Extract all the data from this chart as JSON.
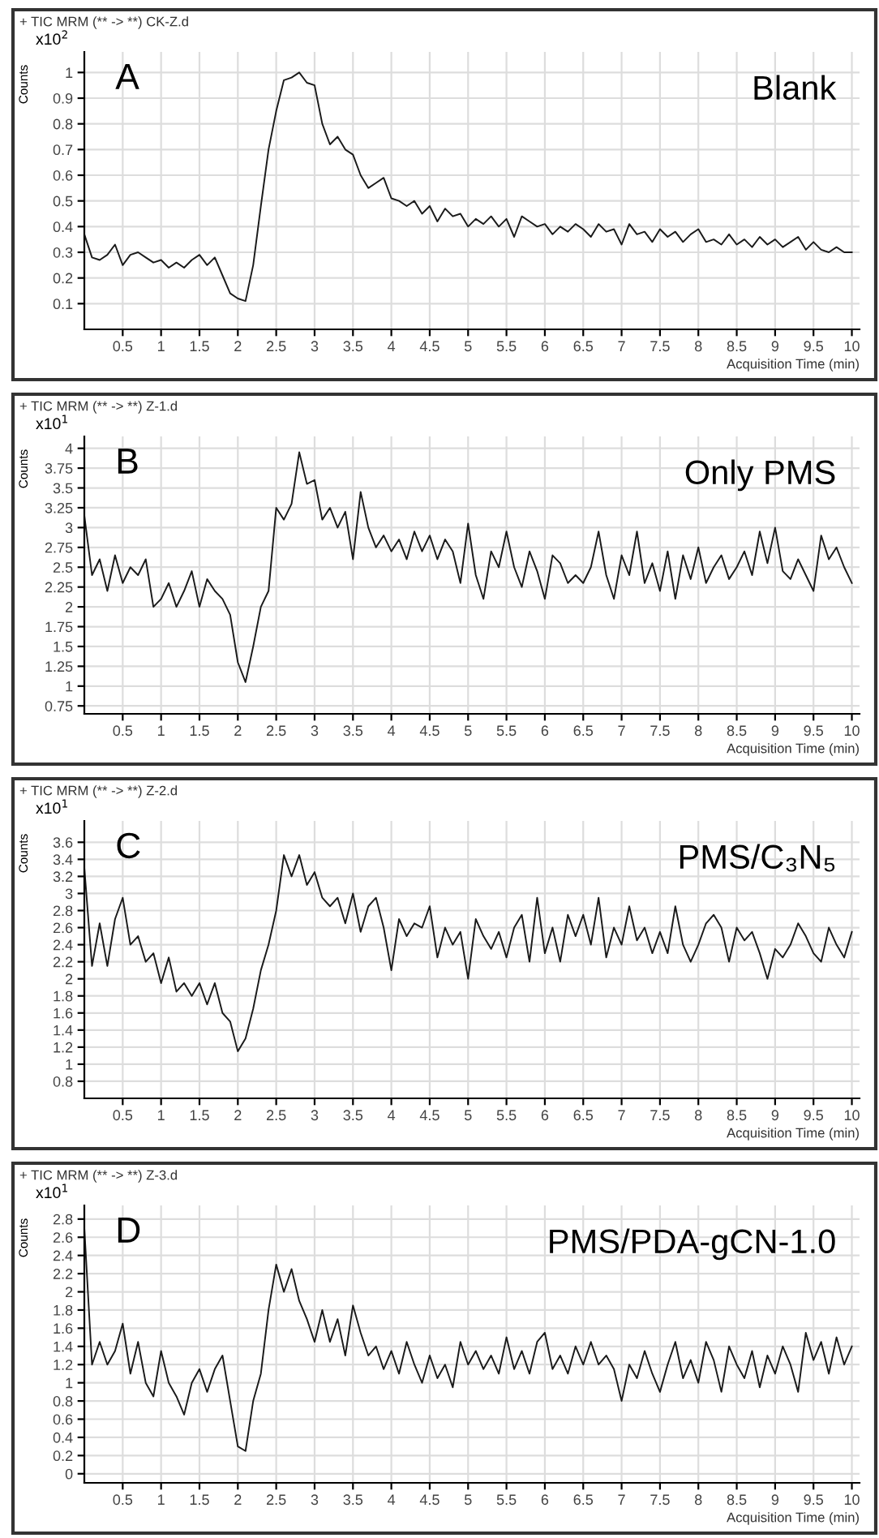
{
  "chart_data": [
    {
      "type": "line",
      "title": "+ TIC MRM (** -> **) CK-Z.d",
      "ylabel": "Counts",
      "xlabel": "Acquisition Time (min)",
      "annotations": [
        "x10$^{2}$",
        "A",
        "Blank"
      ],
      "grid": true,
      "legend": false,
      "marker": "none",
      "line_style": "solid",
      "xlim": [
        0,
        10.1
      ],
      "xticks": [
        0.5,
        1,
        1.5,
        2,
        2.5,
        3,
        3.5,
        4,
        4.5,
        5,
        5.5,
        6,
        6.5,
        7,
        7.5,
        8,
        8.5,
        9,
        9.5,
        10
      ],
      "ylim": [
        0,
        1.08
      ],
      "yticks": [
        0.1,
        0.2,
        0.3,
        0.4,
        0.5,
        0.6,
        0.7,
        0.8,
        0.9,
        1
      ],
      "x": [
        0,
        0.1,
        0.2,
        0.3,
        0.4,
        0.5,
        0.6,
        0.7,
        0.8,
        0.9,
        1,
        1.1,
        1.2,
        1.3,
        1.4,
        1.5,
        1.6,
        1.7,
        1.8,
        1.9,
        2,
        2.1,
        2.2,
        2.3,
        2.4,
        2.5,
        2.6,
        2.7,
        2.8,
        2.9,
        3,
        3.1,
        3.2,
        3.3,
        3.4,
        3.5,
        3.6,
        3.7,
        3.8,
        3.9,
        4,
        4.1,
        4.2,
        4.3,
        4.4,
        4.5,
        4.6,
        4.7,
        4.8,
        4.9,
        5,
        5.1,
        5.2,
        5.3,
        5.4,
        5.5,
        5.6,
        5.7,
        5.8,
        5.9,
        6,
        6.1,
        6.2,
        6.3,
        6.4,
        6.5,
        6.6,
        6.7,
        6.8,
        6.9,
        7,
        7.1,
        7.2,
        7.3,
        7.4,
        7.5,
        7.6,
        7.7,
        7.8,
        7.9,
        8,
        8.1,
        8.2,
        8.3,
        8.4,
        8.5,
        8.6,
        8.7,
        8.8,
        8.9,
        9,
        9.1,
        9.2,
        9.3,
        9.4,
        9.5,
        9.6,
        9.7,
        9.8,
        9.9,
        10
      ],
      "series": [
        {
          "color": "#1a1a1a",
          "values": [
            0.37,
            0.28,
            0.27,
            0.29,
            0.33,
            0.25,
            0.29,
            0.3,
            0.28,
            0.26,
            0.27,
            0.24,
            0.26,
            0.24,
            0.27,
            0.29,
            0.25,
            0.28,
            0.21,
            0.14,
            0.12,
            0.11,
            0.25,
            0.48,
            0.7,
            0.85,
            0.97,
            0.98,
            1.0,
            0.96,
            0.95,
            0.8,
            0.72,
            0.75,
            0.7,
            0.68,
            0.6,
            0.55,
            0.57,
            0.59,
            0.51,
            0.5,
            0.48,
            0.5,
            0.45,
            0.48,
            0.42,
            0.47,
            0.44,
            0.45,
            0.4,
            0.43,
            0.41,
            0.44,
            0.4,
            0.43,
            0.36,
            0.44,
            0.42,
            0.4,
            0.41,
            0.37,
            0.4,
            0.38,
            0.41,
            0.39,
            0.36,
            0.41,
            0.38,
            0.39,
            0.33,
            0.41,
            0.37,
            0.38,
            0.34,
            0.39,
            0.36,
            0.38,
            0.34,
            0.37,
            0.39,
            0.34,
            0.35,
            0.33,
            0.37,
            0.33,
            0.35,
            0.32,
            0.36,
            0.33,
            0.35,
            0.32,
            0.34,
            0.36,
            0.31,
            0.34,
            0.31,
            0.3,
            0.32,
            0.3,
            0.3
          ]
        }
      ]
    },
    {
      "type": "line",
      "title": "+ TIC MRM (** -> **) Z-1.d",
      "ylabel": "Counts",
      "xlabel": "Acquisition Time (min)",
      "annotations": [
        "x10$^{1}$",
        "B",
        "Only PMS"
      ],
      "grid": true,
      "legend": false,
      "marker": "none",
      "line_style": "solid",
      "xlim": [
        0,
        10.1
      ],
      "xticks": [
        0.5,
        1,
        1.5,
        2,
        2.5,
        3,
        3.5,
        4,
        4.5,
        5,
        5.5,
        6,
        6.5,
        7,
        7.5,
        8,
        8.5,
        9,
        9.5,
        10
      ],
      "ylim": [
        0.65,
        4.15
      ],
      "yticks": [
        0.75,
        1,
        1.25,
        1.5,
        1.75,
        2,
        2.25,
        2.5,
        2.75,
        3,
        3.25,
        3.5,
        3.75,
        4
      ],
      "x": [
        0,
        0.1,
        0.2,
        0.3,
        0.4,
        0.5,
        0.6,
        0.7,
        0.8,
        0.9,
        1,
        1.1,
        1.2,
        1.3,
        1.4,
        1.5,
        1.6,
        1.7,
        1.8,
        1.9,
        2,
        2.1,
        2.2,
        2.3,
        2.4,
        2.5,
        2.6,
        2.7,
        2.8,
        2.9,
        3,
        3.1,
        3.2,
        3.3,
        3.4,
        3.5,
        3.6,
        3.7,
        3.8,
        3.9,
        4,
        4.1,
        4.2,
        4.3,
        4.4,
        4.5,
        4.6,
        4.7,
        4.8,
        4.9,
        5,
        5.1,
        5.2,
        5.3,
        5.4,
        5.5,
        5.6,
        5.7,
        5.8,
        5.9,
        6,
        6.1,
        6.2,
        6.3,
        6.4,
        6.5,
        6.6,
        6.7,
        6.8,
        6.9,
        7,
        7.1,
        7.2,
        7.3,
        7.4,
        7.5,
        7.6,
        7.7,
        7.8,
        7.9,
        8,
        8.1,
        8.2,
        8.3,
        8.4,
        8.5,
        8.6,
        8.7,
        8.8,
        8.9,
        9,
        9.1,
        9.2,
        9.3,
        9.4,
        9.5,
        9.6,
        9.7,
        9.8,
        9.9,
        10
      ],
      "series": [
        {
          "color": "#1a1a1a",
          "values": [
            3.15,
            2.4,
            2.6,
            2.2,
            2.65,
            2.3,
            2.5,
            2.4,
            2.6,
            2.0,
            2.1,
            2.3,
            2.0,
            2.2,
            2.45,
            2.0,
            2.35,
            2.2,
            2.1,
            1.9,
            1.3,
            1.05,
            1.5,
            2.0,
            2.2,
            3.25,
            3.1,
            3.3,
            3.95,
            3.55,
            3.6,
            3.1,
            3.25,
            3.0,
            3.2,
            2.6,
            3.45,
            3.0,
            2.75,
            2.9,
            2.7,
            2.85,
            2.6,
            2.95,
            2.7,
            2.9,
            2.6,
            2.85,
            2.7,
            2.3,
            3.05,
            2.4,
            2.1,
            2.7,
            2.5,
            2.95,
            2.5,
            2.25,
            2.7,
            2.45,
            2.1,
            2.65,
            2.55,
            2.3,
            2.4,
            2.3,
            2.5,
            2.95,
            2.4,
            2.1,
            2.65,
            2.4,
            2.95,
            2.3,
            2.55,
            2.2,
            2.7,
            2.1,
            2.65,
            2.35,
            2.75,
            2.3,
            2.5,
            2.65,
            2.35,
            2.5,
            2.7,
            2.4,
            2.95,
            2.55,
            3.0,
            2.45,
            2.35,
            2.6,
            2.4,
            2.2,
            2.9,
            2.6,
            2.75,
            2.5,
            2.3
          ]
        }
      ]
    },
    {
      "type": "line",
      "title": "+ TIC MRM (** -> **) Z-2.d",
      "ylabel": "Counts",
      "xlabel": "Acquisition Time (min)",
      "annotations": [
        "x10$^{1}$",
        "C",
        "PMS/C₃N₅"
      ],
      "grid": true,
      "legend": false,
      "marker": "none",
      "line_style": "solid",
      "xlim": [
        0,
        10.1
      ],
      "xticks": [
        0.5,
        1,
        1.5,
        2,
        2.5,
        3,
        3.5,
        4,
        4.5,
        5,
        5.5,
        6,
        6.5,
        7,
        7.5,
        8,
        8.5,
        9,
        9.5,
        10
      ],
      "ylim": [
        0.6,
        3.85
      ],
      "yticks": [
        0.8,
        1,
        1.2,
        1.4,
        1.6,
        1.8,
        2,
        2.2,
        2.4,
        2.6,
        2.8,
        3,
        3.2,
        3.4,
        3.6
      ],
      "x": [
        0,
        0.1,
        0.2,
        0.3,
        0.4,
        0.5,
        0.6,
        0.7,
        0.8,
        0.9,
        1,
        1.1,
        1.2,
        1.3,
        1.4,
        1.5,
        1.6,
        1.7,
        1.8,
        1.9,
        2,
        2.1,
        2.2,
        2.3,
        2.4,
        2.5,
        2.6,
        2.7,
        2.8,
        2.9,
        3,
        3.1,
        3.2,
        3.3,
        3.4,
        3.5,
        3.6,
        3.7,
        3.8,
        3.9,
        4,
        4.1,
        4.2,
        4.3,
        4.4,
        4.5,
        4.6,
        4.7,
        4.8,
        4.9,
        5,
        5.1,
        5.2,
        5.3,
        5.4,
        5.5,
        5.6,
        5.7,
        5.8,
        5.9,
        6,
        6.1,
        6.2,
        6.3,
        6.4,
        6.5,
        6.6,
        6.7,
        6.8,
        6.9,
        7,
        7.1,
        7.2,
        7.3,
        7.4,
        7.5,
        7.6,
        7.7,
        7.8,
        7.9,
        8,
        8.1,
        8.2,
        8.3,
        8.4,
        8.5,
        8.6,
        8.7,
        8.8,
        8.9,
        9,
        9.1,
        9.2,
        9.3,
        9.4,
        9.5,
        9.6,
        9.7,
        9.8,
        9.9,
        10
      ],
      "series": [
        {
          "color": "#1a1a1a",
          "values": [
            3.3,
            2.15,
            2.65,
            2.15,
            2.7,
            2.95,
            2.4,
            2.5,
            2.2,
            2.3,
            1.95,
            2.25,
            1.85,
            1.95,
            1.8,
            1.95,
            1.7,
            1.95,
            1.6,
            1.5,
            1.15,
            1.3,
            1.65,
            2.1,
            2.4,
            2.8,
            3.45,
            3.2,
            3.45,
            3.1,
            3.25,
            2.95,
            2.85,
            2.95,
            2.65,
            3.0,
            2.55,
            2.85,
            2.95,
            2.6,
            2.1,
            2.7,
            2.5,
            2.65,
            2.6,
            2.85,
            2.25,
            2.6,
            2.4,
            2.55,
            2.0,
            2.7,
            2.5,
            2.35,
            2.55,
            2.25,
            2.6,
            2.75,
            2.2,
            2.95,
            2.3,
            2.6,
            2.2,
            2.75,
            2.5,
            2.75,
            2.4,
            2.95,
            2.25,
            2.6,
            2.4,
            2.85,
            2.45,
            2.6,
            2.3,
            2.55,
            2.3,
            2.85,
            2.4,
            2.2,
            2.4,
            2.65,
            2.75,
            2.6,
            2.2,
            2.6,
            2.45,
            2.55,
            2.3,
            2.0,
            2.35,
            2.25,
            2.4,
            2.65,
            2.5,
            2.3,
            2.2,
            2.6,
            2.4,
            2.25,
            2.55
          ]
        }
      ]
    },
    {
      "type": "line",
      "title": "+ TIC MRM (** -> **) Z-3.d",
      "ylabel": "Counts",
      "xlabel": "Acquisition Time (min)",
      "annotations": [
        "x10$^{1}$",
        "D",
        "PMS/PDA-gCN-1.0"
      ],
      "grid": true,
      "legend": false,
      "marker": "none",
      "line_style": "solid",
      "xlim": [
        0,
        10.1
      ],
      "xticks": [
        0.5,
        1,
        1.5,
        2,
        2.5,
        3,
        3.5,
        4,
        4.5,
        5,
        5.5,
        6,
        6.5,
        7,
        7.5,
        8,
        8.5,
        9,
        9.5,
        10
      ],
      "ylim": [
        -0.1,
        2.95
      ],
      "yticks": [
        0,
        0.2,
        0.4,
        0.6,
        0.8,
        1,
        1.2,
        1.4,
        1.6,
        1.8,
        2,
        2.2,
        2.4,
        2.6,
        2.8
      ],
      "x": [
        0,
        0.1,
        0.2,
        0.3,
        0.4,
        0.5,
        0.6,
        0.7,
        0.8,
        0.9,
        1,
        1.1,
        1.2,
        1.3,
        1.4,
        1.5,
        1.6,
        1.7,
        1.8,
        1.9,
        2,
        2.1,
        2.2,
        2.3,
        2.4,
        2.5,
        2.6,
        2.7,
        2.8,
        2.9,
        3,
        3.1,
        3.2,
        3.3,
        3.4,
        3.5,
        3.6,
        3.7,
        3.8,
        3.9,
        4,
        4.1,
        4.2,
        4.3,
        4.4,
        4.5,
        4.6,
        4.7,
        4.8,
        4.9,
        5,
        5.1,
        5.2,
        5.3,
        5.4,
        5.5,
        5.6,
        5.7,
        5.8,
        5.9,
        6,
        6.1,
        6.2,
        6.3,
        6.4,
        6.5,
        6.6,
        6.7,
        6.8,
        6.9,
        7,
        7.1,
        7.2,
        7.3,
        7.4,
        7.5,
        7.6,
        7.7,
        7.8,
        7.9,
        8,
        8.1,
        8.2,
        8.3,
        8.4,
        8.5,
        8.6,
        8.7,
        8.8,
        8.9,
        9,
        9.1,
        9.2,
        9.3,
        9.4,
        9.5,
        9.6,
        9.7,
        9.8,
        9.9,
        10
      ],
      "series": [
        {
          "color": "#1a1a1a",
          "values": [
            2.7,
            1.2,
            1.45,
            1.2,
            1.35,
            1.65,
            1.1,
            1.45,
            1.0,
            0.85,
            1.35,
            1.0,
            0.85,
            0.65,
            1.0,
            1.15,
            0.9,
            1.15,
            1.3,
            0.8,
            0.3,
            0.25,
            0.8,
            1.1,
            1.8,
            2.3,
            2.0,
            2.25,
            1.9,
            1.7,
            1.45,
            1.8,
            1.45,
            1.7,
            1.3,
            1.85,
            1.55,
            1.3,
            1.4,
            1.15,
            1.35,
            1.1,
            1.45,
            1.2,
            1.0,
            1.3,
            1.05,
            1.2,
            0.95,
            1.45,
            1.2,
            1.35,
            1.15,
            1.3,
            1.1,
            1.5,
            1.15,
            1.35,
            1.1,
            1.45,
            1.55,
            1.15,
            1.3,
            1.1,
            1.4,
            1.2,
            1.45,
            1.2,
            1.3,
            1.15,
            0.8,
            1.2,
            1.05,
            1.35,
            1.1,
            0.9,
            1.2,
            1.45,
            1.05,
            1.25,
            1.0,
            1.45,
            1.25,
            0.9,
            1.4,
            1.2,
            1.05,
            1.35,
            0.95,
            1.3,
            1.1,
            1.4,
            1.2,
            0.9,
            1.55,
            1.25,
            1.45,
            1.1,
            1.5,
            1.2,
            1.4
          ]
        }
      ]
    }
  ]
}
